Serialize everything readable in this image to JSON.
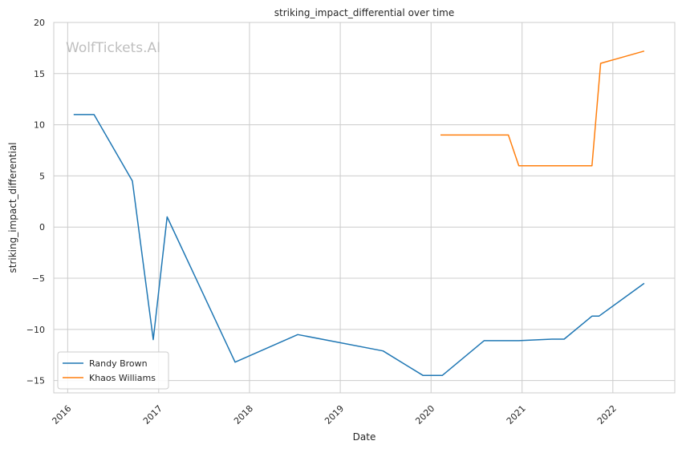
{
  "watermark": "WolfTickets.AI",
  "chart_data": {
    "type": "line",
    "title": "striking_impact_differential over time",
    "xlabel": "Date",
    "ylabel": "striking_impact_differential",
    "xlim": [
      "2015-11-06",
      "2022-09-07"
    ],
    "ylim": [
      -16.2,
      20
    ],
    "x_ticks": [
      "2016-01-01",
      "2017-01-01",
      "2018-01-01",
      "2019-01-01",
      "2020-01-01",
      "2021-01-01",
      "2022-01-01"
    ],
    "x_tick_labels": [
      "2016",
      "2017",
      "2018",
      "2019",
      "2020",
      "2021",
      "2022"
    ],
    "y_ticks": [
      -15,
      -10,
      -5,
      0,
      5,
      10,
      15,
      20
    ],
    "y_tick_labels": [
      "−15",
      "−10",
      "−5",
      "0",
      "5",
      "10",
      "15",
      "20"
    ],
    "grid": true,
    "legend_position": "lower-left",
    "series": [
      {
        "name": "Randy Brown",
        "color": "#1f77b4",
        "points": [
          [
            "2016-01-25",
            11.0
          ],
          [
            "2016-04-16",
            11.0
          ],
          [
            "2016-09-17",
            4.5
          ],
          [
            "2016-12-10",
            -11.0
          ],
          [
            "2017-02-04",
            1.0
          ],
          [
            "2017-11-04",
            -13.2
          ],
          [
            "2018-07-14",
            -10.5
          ],
          [
            "2019-06-22",
            -12.1
          ],
          [
            "2019-11-30",
            -14.5
          ],
          [
            "2020-02-15",
            -14.5
          ],
          [
            "2020-08-01",
            -11.1
          ],
          [
            "2020-12-19",
            -11.1
          ],
          [
            "2021-05-01",
            -10.95
          ],
          [
            "2021-06-19",
            -10.95
          ],
          [
            "2021-10-09",
            -8.7
          ],
          [
            "2021-11-06",
            -8.7
          ],
          [
            "2022-05-07",
            -5.5
          ]
        ]
      },
      {
        "name": "Khaos Williams",
        "color": "#ff7f0e",
        "points": [
          [
            "2020-02-08",
            9.0
          ],
          [
            "2020-11-07",
            9.0
          ],
          [
            "2020-12-19",
            6.0
          ],
          [
            "2021-10-09",
            6.0
          ],
          [
            "2021-11-13",
            16.0
          ],
          [
            "2022-05-07",
            17.2
          ]
        ]
      }
    ]
  }
}
